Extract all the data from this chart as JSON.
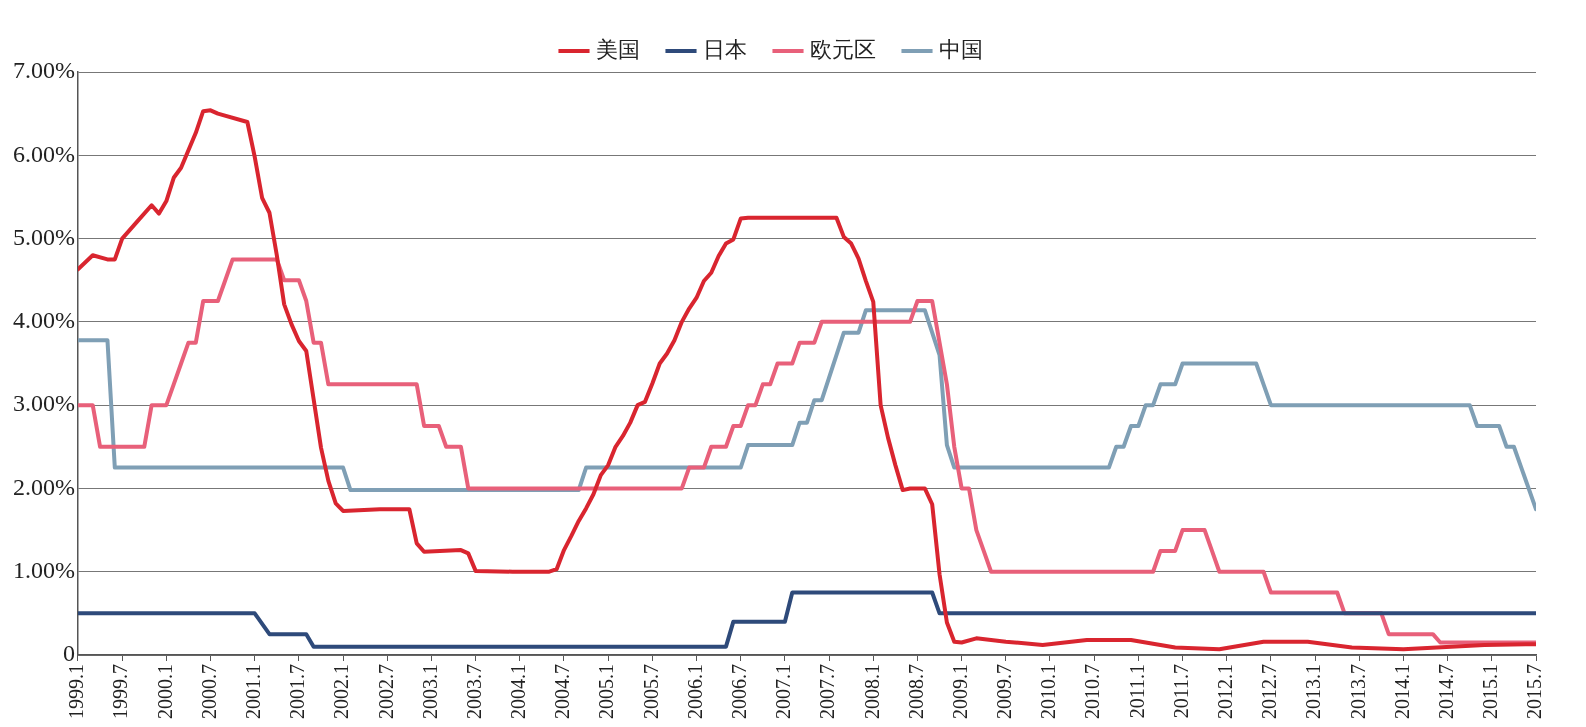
{
  "chart_data": {
    "type": "line",
    "legend": "top",
    "grid": "y",
    "marker": "none",
    "line_style": "solid",
    "xlim": [
      "1999-01",
      "2015-07"
    ],
    "xticks": [
      {
        "value": "1999-01",
        "label": "1999.1"
      },
      {
        "value": "1999-07",
        "label": "1999.7"
      },
      {
        "value": "2000-01",
        "label": "2000.1"
      },
      {
        "value": "2000-07",
        "label": "2000.7"
      },
      {
        "value": "2001-01",
        "label": "2001.1"
      },
      {
        "value": "2001-07",
        "label": "2001.7"
      },
      {
        "value": "2002-01",
        "label": "2002.1"
      },
      {
        "value": "2002-07",
        "label": "2002.7"
      },
      {
        "value": "2003-01",
        "label": "2003.1"
      },
      {
        "value": "2003-07",
        "label": "2003.7"
      },
      {
        "value": "2004-01",
        "label": "2004.1"
      },
      {
        "value": "2004-07",
        "label": "2004.7"
      },
      {
        "value": "2005-01",
        "label": "2005.1"
      },
      {
        "value": "2005-07",
        "label": "2005.7"
      },
      {
        "value": "2006-01",
        "label": "2006.1"
      },
      {
        "value": "2006-07",
        "label": "2006.7"
      },
      {
        "value": "2007-01",
        "label": "2007.1"
      },
      {
        "value": "2007-07",
        "label": "2007.7"
      },
      {
        "value": "2008-01",
        "label": "2008.1"
      },
      {
        "value": "2008-07",
        "label": "2008.7"
      },
      {
        "value": "2009-01",
        "label": "2009.1"
      },
      {
        "value": "2009-07",
        "label": "2009.7"
      },
      {
        "value": "2010-01",
        "label": "2010.1"
      },
      {
        "value": "2010-07",
        "label": "2010.7"
      },
      {
        "value": "2011-01",
        "label": "2011.1"
      },
      {
        "value": "2011-07",
        "label": "2011.7"
      },
      {
        "value": "2012-01",
        "label": "2012.1"
      },
      {
        "value": "2012-07",
        "label": "2012.7"
      },
      {
        "value": "2013-01",
        "label": "2013.1"
      },
      {
        "value": "2013-07",
        "label": "2013.7"
      },
      {
        "value": "2014-01",
        "label": "2014.1"
      },
      {
        "value": "2014-07",
        "label": "2014.7"
      },
      {
        "value": "2015-01",
        "label": "2015.1"
      },
      {
        "value": "2015-07",
        "label": "2015.7"
      }
    ],
    "ylim": [
      0,
      7
    ],
    "yticks": [
      0,
      {
        "value": 1,
        "label": "1.00%"
      },
      {
        "value": 2,
        "label": "2.00%"
      },
      {
        "value": 3,
        "label": "3.00%"
      },
      {
        "value": 4,
        "label": "4.00%"
      },
      {
        "value": 5,
        "label": "5.00%"
      },
      {
        "value": 6,
        "label": "6.00%"
      },
      {
        "value": 7,
        "label": "7.00%"
      }
    ],
    "series": [
      {
        "name": "美国",
        "color": "#d9252f",
        "x": [
          "1999-01",
          "1999-03",
          "1999-05",
          "1999-06",
          "1999-07",
          "1999-09",
          "1999-11",
          "1999-12",
          "2000-01",
          "2000-02",
          "2000-03",
          "2000-05",
          "2000-06",
          "2000-07",
          "2000-08",
          "2000-12",
          "2001-01",
          "2001-02",
          "2001-03",
          "2001-04",
          "2001-05",
          "2001-06",
          "2001-07",
          "2001-08",
          "2001-09",
          "2001-10",
          "2001-11",
          "2001-12",
          "2002-01",
          "2002-06",
          "2002-10",
          "2002-11",
          "2002-12",
          "2003-05",
          "2003-06",
          "2003-07",
          "2003-12",
          "2004-05",
          "2004-06",
          "2004-07",
          "2004-08",
          "2004-09",
          "2004-10",
          "2004-11",
          "2004-12",
          "2005-01",
          "2005-02",
          "2005-03",
          "2005-04",
          "2005-05",
          "2005-06",
          "2005-07",
          "2005-08",
          "2005-09",
          "2005-10",
          "2005-11",
          "2005-12",
          "2006-01",
          "2006-02",
          "2006-03",
          "2006-04",
          "2006-05",
          "2006-06",
          "2006-07",
          "2006-08",
          "2007-08",
          "2007-09",
          "2007-10",
          "2007-11",
          "2007-12",
          "2008-01",
          "2008-02",
          "2008-03",
          "2008-04",
          "2008-05",
          "2008-06",
          "2008-08",
          "2008-09",
          "2008-10",
          "2008-11",
          "2008-12",
          "2009-01",
          "2009-03",
          "2009-05",
          "2009-07",
          "2009-12",
          "2010-06",
          "2010-12",
          "2011-06",
          "2011-12",
          "2012-06",
          "2012-12",
          "2013-06",
          "2014-01",
          "2014-12",
          "2015-07"
        ],
        "values": [
          4.63,
          4.8,
          4.75,
          4.75,
          5.0,
          5.2,
          5.4,
          5.3,
          5.45,
          5.73,
          5.85,
          6.27,
          6.53,
          6.54,
          6.5,
          6.4,
          5.98,
          5.49,
          5.31,
          4.8,
          4.21,
          3.97,
          3.77,
          3.65,
          3.07,
          2.49,
          2.09,
          1.82,
          1.73,
          1.75,
          1.75,
          1.34,
          1.24,
          1.26,
          1.22,
          1.01,
          1.0,
          1.0,
          1.03,
          1.26,
          1.43,
          1.61,
          1.76,
          1.93,
          2.16,
          2.28,
          2.5,
          2.63,
          2.79,
          3.0,
          3.04,
          3.26,
          3.5,
          3.62,
          3.78,
          4.0,
          4.16,
          4.29,
          4.49,
          4.59,
          4.79,
          4.94,
          4.99,
          5.24,
          5.25,
          5.25,
          5.02,
          4.94,
          4.76,
          4.49,
          4.24,
          3.0,
          2.61,
          2.28,
          1.98,
          2.0,
          2.0,
          1.81,
          0.97,
          0.39,
          0.16,
          0.15,
          0.2,
          0.18,
          0.16,
          0.12,
          0.18,
          0.18,
          0.09,
          0.07,
          0.16,
          0.16,
          0.09,
          0.07,
          0.12,
          0.13
        ]
      },
      {
        "name": "日本",
        "color": "#2e4a7a",
        "x": [
          "1999-01",
          "2001-01",
          "2001-03",
          "2001-08",
          "2001-09",
          "2006-05",
          "2006-06",
          "2007-01",
          "2007-02",
          "2008-09",
          "2008-10",
          "2015-07"
        ],
        "values": [
          0.5,
          0.5,
          0.25,
          0.25,
          0.1,
          0.1,
          0.4,
          0.4,
          0.75,
          0.75,
          0.5,
          0.5
        ]
      },
      {
        "name": "欧元区",
        "color": "#e8607a",
        "x": [
          "1999-01",
          "1999-03",
          "1999-04",
          "1999-10",
          "1999-11",
          "2000-01",
          "2000-02",
          "2000-03",
          "2000-04",
          "2000-05",
          "2000-06",
          "2000-08",
          "2000-09",
          "2000-10",
          "2001-04",
          "2001-05",
          "2001-07",
          "2001-08",
          "2001-09",
          "2001-10",
          "2001-11",
          "2002-11",
          "2002-12",
          "2003-02",
          "2003-03",
          "2003-05",
          "2003-06",
          "2005-11",
          "2005-12",
          "2006-02",
          "2006-03",
          "2006-05",
          "2006-06",
          "2006-07",
          "2006-08",
          "2006-09",
          "2006-10",
          "2006-11",
          "2006-12",
          "2007-02",
          "2007-03",
          "2007-05",
          "2007-06",
          "2008-06",
          "2008-07",
          "2008-09",
          "2008-10",
          "2008-11",
          "2008-12",
          "2009-01",
          "2009-02",
          "2009-03",
          "2009-04",
          "2009-05",
          "2011-03",
          "2011-04",
          "2011-06",
          "2011-07",
          "2011-10",
          "2011-11",
          "2011-12",
          "2012-06",
          "2012-07",
          "2013-04",
          "2013-05",
          "2013-10",
          "2013-11",
          "2014-05",
          "2014-06",
          "2015-07"
        ],
        "values": [
          3.0,
          3.0,
          2.5,
          2.5,
          3.0,
          3.0,
          3.25,
          3.5,
          3.75,
          3.75,
          4.25,
          4.25,
          4.5,
          4.75,
          4.75,
          4.5,
          4.5,
          4.25,
          3.75,
          3.75,
          3.25,
          3.25,
          2.75,
          2.75,
          2.5,
          2.5,
          2.0,
          2.0,
          2.25,
          2.25,
          2.5,
          2.5,
          2.75,
          2.75,
          3.0,
          3.0,
          3.25,
          3.25,
          3.5,
          3.5,
          3.75,
          3.75,
          4.0,
          4.0,
          4.25,
          4.25,
          3.75,
          3.25,
          2.5,
          2.0,
          2.0,
          1.5,
          1.25,
          1.0,
          1.0,
          1.25,
          1.25,
          1.5,
          1.5,
          1.25,
          1.0,
          1.0,
          0.75,
          0.75,
          0.5,
          0.5,
          0.25,
          0.25,
          0.15,
          0.15
        ]
      },
      {
        "name": "中国",
        "color": "#7f9fb5",
        "x": [
          "1999-01",
          "1999-05",
          "1999-06",
          "2002-01",
          "2002-02",
          "2004-09",
          "2004-10",
          "2006-07",
          "2006-08",
          "2007-02",
          "2007-03",
          "2007-04",
          "2007-05",
          "2007-06",
          "2007-07",
          "2007-08",
          "2007-09",
          "2007-11",
          "2007-12",
          "2008-08",
          "2008-09",
          "2008-10",
          "2008-11",
          "2008-12",
          "2010-09",
          "2010-10",
          "2010-11",
          "2010-12",
          "2011-01",
          "2011-02",
          "2011-03",
          "2011-04",
          "2011-06",
          "2011-07",
          "2012-05",
          "2012-06",
          "2012-07",
          "2014-10",
          "2014-11",
          "2015-02",
          "2015-03",
          "2015-04",
          "2015-05",
          "2015-06",
          "2015-07"
        ],
        "values": [
          3.78,
          3.78,
          2.25,
          2.25,
          1.98,
          1.98,
          2.25,
          2.25,
          2.52,
          2.52,
          2.79,
          2.79,
          3.06,
          3.06,
          3.33,
          3.6,
          3.87,
          3.87,
          4.14,
          4.14,
          3.87,
          3.6,
          2.52,
          2.25,
          2.25,
          2.5,
          2.5,
          2.75,
          2.75,
          3.0,
          3.0,
          3.25,
          3.25,
          3.5,
          3.5,
          3.25,
          3.0,
          3.0,
          2.75,
          2.75,
          2.5,
          2.5,
          2.25,
          2.0,
          1.75
        ]
      }
    ]
  }
}
